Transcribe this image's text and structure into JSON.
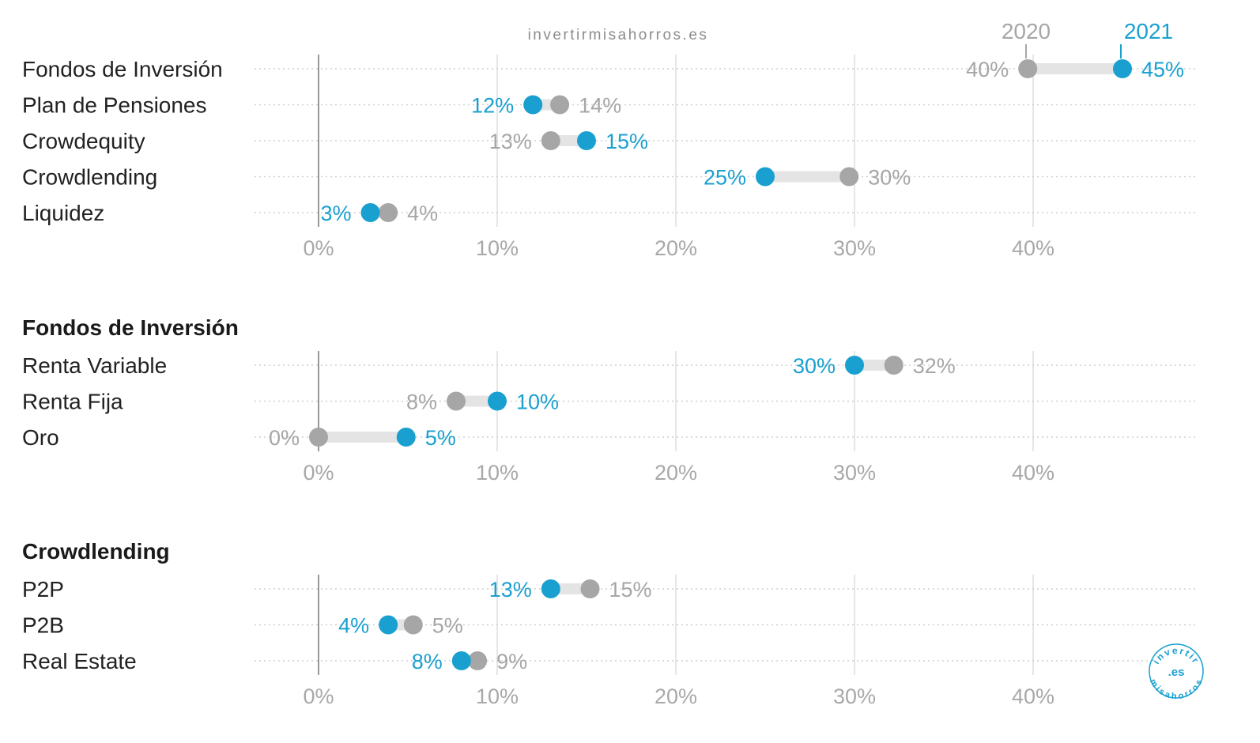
{
  "watermark": "invertirmisahorros.es",
  "colors": {
    "y2020": "#a6a6a6",
    "y2021": "#1aa0d0",
    "connector": "#e4e4e4",
    "gridline": "#e6e6e6",
    "dotted": "#cfcfcf",
    "axis_zero": "#999999"
  },
  "legend": {
    "label_2020": "2020",
    "label_2021": "2021"
  },
  "logo": {
    "text_top": "invertir",
    "text_center": ".es",
    "text_bottom": "misahorros"
  },
  "chart_data": [
    {
      "type": "dumbbell",
      "title": "",
      "xlim": [
        0,
        50
      ],
      "ticks": [
        "0%",
        "10%",
        "20%",
        "30%",
        "40%"
      ],
      "categories": [
        "Fondos de Inversión",
        "Plan de Pensiones",
        "Crowdequity",
        "Crowdlending",
        "Liquidez"
      ],
      "series": [
        {
          "name": "2020",
          "values": [
            39.7,
            13.5,
            13,
            29.7,
            3.9
          ],
          "labels": [
            "40%",
            "14%",
            "13%",
            "30%",
            "4%"
          ]
        },
        {
          "name": "2021",
          "values": [
            45,
            12,
            15,
            25,
            2.9
          ],
          "labels": [
            "45%",
            "12%",
            "15%",
            "25%",
            "3%"
          ]
        }
      ]
    },
    {
      "type": "dumbbell",
      "title": "Fondos de Inversión",
      "xlim": [
        0,
        50
      ],
      "ticks": [
        "0%",
        "10%",
        "20%",
        "30%",
        "40%"
      ],
      "categories": [
        "Renta Variable",
        "Renta Fija",
        "Oro"
      ],
      "series": [
        {
          "name": "2020",
          "values": [
            32.2,
            7.7,
            0
          ],
          "labels": [
            "32%",
            "8%",
            "0%"
          ]
        },
        {
          "name": "2021",
          "values": [
            30,
            10,
            4.9
          ],
          "labels": [
            "30%",
            "10%",
            "5%"
          ]
        }
      ]
    },
    {
      "type": "dumbbell",
      "title": "Crowdlending",
      "xlim": [
        0,
        50
      ],
      "ticks": [
        "0%",
        "10%",
        "20%",
        "30%",
        "40%"
      ],
      "categories": [
        "P2P",
        "P2B",
        "Real Estate"
      ],
      "series": [
        {
          "name": "2020",
          "values": [
            15.2,
            5.3,
            8.9
          ],
          "labels": [
            "15%",
            "5%",
            "9%"
          ]
        },
        {
          "name": "2021",
          "values": [
            13,
            3.9,
            8
          ],
          "labels": [
            "13%",
            "4%",
            "8%"
          ]
        }
      ]
    }
  ]
}
